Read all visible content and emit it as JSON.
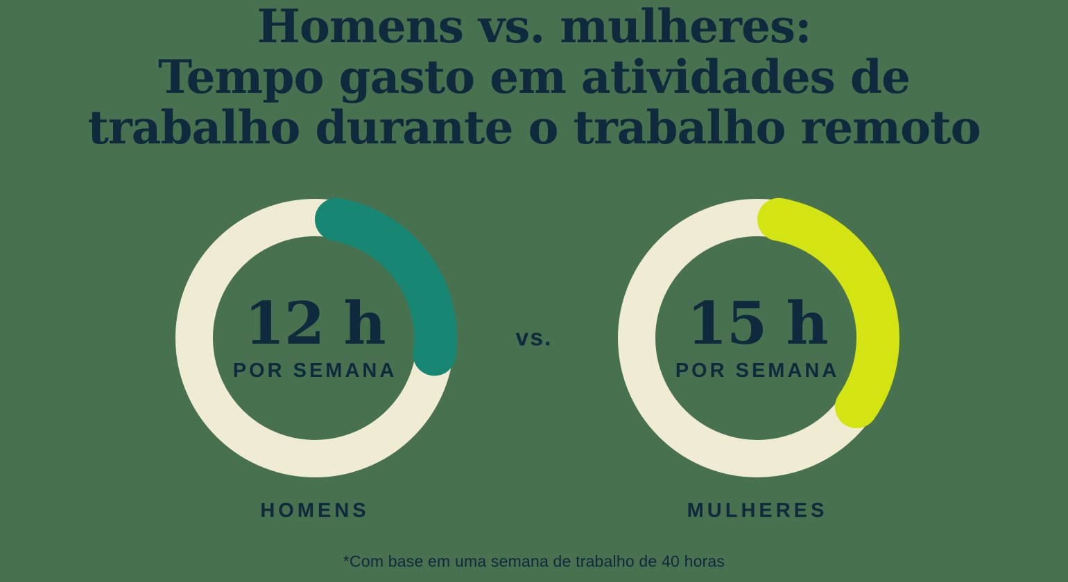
{
  "title": {
    "lines": [
      "Homens vs. mulheres:",
      "Tempo gasto em atividades de",
      "trabalho durante o trabalho remoto"
    ]
  },
  "vs_label": "vs.",
  "footnote": "*Com base em uma semana de trabalho de 40 horas",
  "colors": {
    "background": "#47714f",
    "navy_text": "#0e2a3c",
    "ring_track": "#f0ecd3",
    "teal_arc": "#178672",
    "chartreuse_arc": "#d3e412"
  },
  "chart_data": [
    {
      "type": "donut",
      "group": "HOMENS",
      "value_hours": 12,
      "total_hours": 40,
      "percent": 30,
      "center_value": "12 h",
      "center_caption": "POR SEMANA",
      "arc_color": "#178672",
      "arc_start": "top, clockwise"
    },
    {
      "type": "donut",
      "group": "MULHERES",
      "value_hours": 15,
      "total_hours": 40,
      "percent": 37.5,
      "center_value": "15 h",
      "center_caption": "POR SEMANA",
      "arc_color": "#d3e412",
      "arc_start": "top, clockwise"
    }
  ]
}
